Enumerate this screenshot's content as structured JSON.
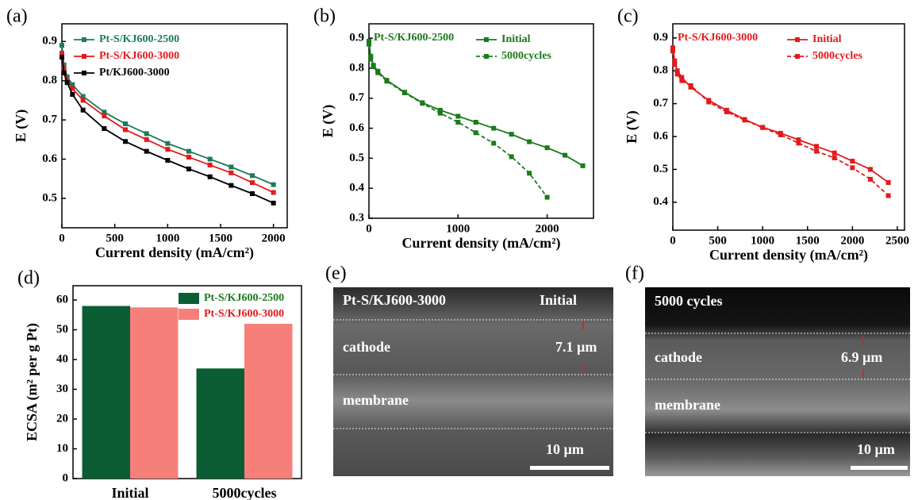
{
  "chart_data": [
    {
      "type": "line",
      "panel_label": "(a)",
      "x_label": "Current density (mA/cm²)",
      "y_label": "E (V)",
      "x": [
        0,
        20,
        50,
        100,
        200,
        400,
        600,
        800,
        1000,
        1200,
        1400,
        1600,
        1800,
        2000
      ],
      "xlim": [
        0,
        2130
      ],
      "xticks": [
        0,
        500,
        1000,
        1500,
        2000
      ],
      "ylim": [
        0.425,
        0.945
      ],
      "yticks": [
        0.5,
        0.6,
        0.7,
        0.8,
        0.9
      ],
      "legend": "upper left",
      "series": [
        {
          "name": "Pt-S/KJ600-2500",
          "color": "#1f7a5c",
          "values": [
            0.89,
            0.84,
            0.81,
            0.79,
            0.76,
            0.72,
            0.69,
            0.665,
            0.64,
            0.62,
            0.6,
            0.58,
            0.558,
            0.535
          ]
        },
        {
          "name": "Pt-S/KJ600-3000",
          "color": "#e31a1c",
          "values": [
            0.87,
            0.83,
            0.8,
            0.78,
            0.75,
            0.71,
            0.675,
            0.65,
            0.625,
            0.605,
            0.585,
            0.565,
            0.54,
            0.515
          ]
        },
        {
          "name": "Pt/KJ600-3000",
          "color": "#000000",
          "values": [
            0.86,
            0.82,
            0.795,
            0.765,
            0.725,
            0.678,
            0.645,
            0.62,
            0.597,
            0.575,
            0.555,
            0.533,
            0.512,
            0.488
          ]
        }
      ]
    },
    {
      "type": "line",
      "panel_label": "(b)",
      "x_label": "Current density (mA/cm²)",
      "y_label": "E (V)",
      "annotation": "Pt-S/KJ600-2500",
      "x": [
        0,
        20,
        50,
        100,
        200,
        400,
        600,
        800,
        1000,
        1200,
        1400,
        1600,
        1800,
        2000,
        2200,
        2400
      ],
      "xlim": [
        0,
        2520
      ],
      "xticks": [
        0,
        1000,
        2000
      ],
      "ylim": [
        0.3,
        0.948
      ],
      "yticks": [
        0.3,
        0.4,
        0.5,
        0.6,
        0.7,
        0.8,
        0.9
      ],
      "legend": "upper right",
      "series": [
        {
          "name": "Initial",
          "color": "#1b7a1b",
          "dash": false,
          "values": [
            0.89,
            0.84,
            0.81,
            0.79,
            0.76,
            0.72,
            0.685,
            0.66,
            0.64,
            0.62,
            0.6,
            0.58,
            0.555,
            0.535,
            0.51,
            0.475
          ]
        },
        {
          "name": "5000cycles",
          "color": "#1b7a1b",
          "dash": true,
          "values": [
            0.88,
            0.83,
            0.805,
            0.785,
            0.757,
            0.718,
            0.683,
            0.65,
            0.62,
            0.585,
            0.55,
            0.505,
            0.45,
            0.37,
            null,
            null
          ]
        }
      ]
    },
    {
      "type": "line",
      "panel_label": "(c)",
      "x_label": "Current density (mA/cm²)",
      "y_label": "E (V)",
      "annotation": "Pt-S/KJ600-3000",
      "x": [
        0,
        20,
        50,
        100,
        200,
        400,
        600,
        800,
        1000,
        1200,
        1400,
        1600,
        1800,
        2000,
        2200,
        2400
      ],
      "xlim": [
        0,
        2580
      ],
      "xticks": [
        0,
        500,
        1000,
        1500,
        2000,
        2500
      ],
      "ylim": [
        0.315,
        0.943
      ],
      "yticks": [
        0.4,
        0.5,
        0.6,
        0.7,
        0.8,
        0.9
      ],
      "legend": "upper right",
      "series": [
        {
          "name": "Initial",
          "color": "#e31a1c",
          "dash": false,
          "values": [
            0.87,
            0.83,
            0.8,
            0.78,
            0.75,
            0.71,
            0.68,
            0.652,
            0.628,
            0.61,
            0.59,
            0.57,
            0.55,
            0.525,
            0.5,
            0.46
          ]
        },
        {
          "name": "5000cycles",
          "color": "#e31a1c",
          "dash": true,
          "values": [
            0.86,
            0.82,
            0.79,
            0.77,
            0.755,
            0.705,
            0.675,
            0.65,
            0.627,
            0.605,
            0.58,
            0.555,
            0.535,
            0.505,
            0.47,
            0.42
          ]
        }
      ]
    },
    {
      "type": "bar",
      "panel_label": "(d)",
      "y_label": "ECSA (m² per g Pt)",
      "categories": [
        "Initial",
        "5000cycles"
      ],
      "ylim": [
        0,
        64.8
      ],
      "yticks": [
        0,
        10,
        20,
        30,
        40,
        50,
        60
      ],
      "legend": "upper right",
      "series": [
        {
          "name": "Pt-S/KJ600-2500",
          "color": "#0b5d34",
          "text_color": "#1b7a1b",
          "values": [
            58,
            37
          ]
        },
        {
          "name": "Pt-S/KJ600-3000",
          "color": "#f77f7a",
          "text_color": "#e31a1c",
          "values": [
            57.5,
            52
          ]
        }
      ]
    }
  ],
  "micrographs": [
    {
      "panel_label": "(e)",
      "title": "Pt-S/KJ600-3000",
      "condition": "Initial",
      "layers": [
        "cathode",
        "membrane"
      ],
      "thickness": "7.1 µm",
      "scale_bar": "10 µm"
    },
    {
      "panel_label": "(f)",
      "condition": "5000 cycles",
      "layers": [
        "cathode",
        "membrane"
      ],
      "thickness": "6.9 µm",
      "scale_bar": "10 µm"
    }
  ]
}
